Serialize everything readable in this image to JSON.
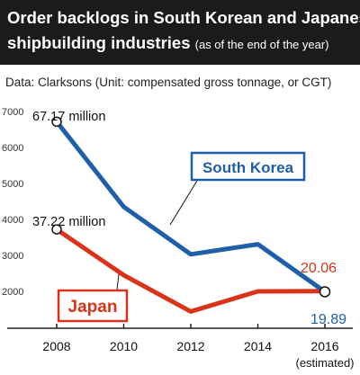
{
  "title_line1": "Order backlogs in South Korean and Japanese",
  "title_line2": "shipbuilding industries",
  "title_note": "(as of the end of the year)",
  "source": "Data: Clarksons (Unit: compensated gross tonnage, or CGT)",
  "colors": {
    "south_korea": "#1f5ea8",
    "japan": "#d9341a",
    "title_bg": "#1b1b1b"
  },
  "annotations": {
    "sk_start": "67.17 million",
    "jp_start": "37.22 million",
    "jp_end": "20.06",
    "sk_end": "19.89",
    "estimated": "(estimated)"
  },
  "chart_data": {
    "type": "line",
    "x": [
      2008,
      2010,
      2012,
      2014,
      2016
    ],
    "x_tick_labels": [
      "2008",
      "2010",
      "2012",
      "2014",
      "2016"
    ],
    "y_tick_labels": [
      "2000",
      "3000",
      "4000",
      "5000",
      "6000",
      "7000"
    ],
    "ylim": [
      1200,
      7000
    ],
    "grid": false,
    "series": [
      {
        "name": "South Korea",
        "values": [
          6717,
          4350,
          3030,
          3310,
          1989
        ]
      },
      {
        "name": "Japan",
        "values": [
          3722,
          2450,
          1440,
          2000,
          2006
        ]
      }
    ]
  }
}
